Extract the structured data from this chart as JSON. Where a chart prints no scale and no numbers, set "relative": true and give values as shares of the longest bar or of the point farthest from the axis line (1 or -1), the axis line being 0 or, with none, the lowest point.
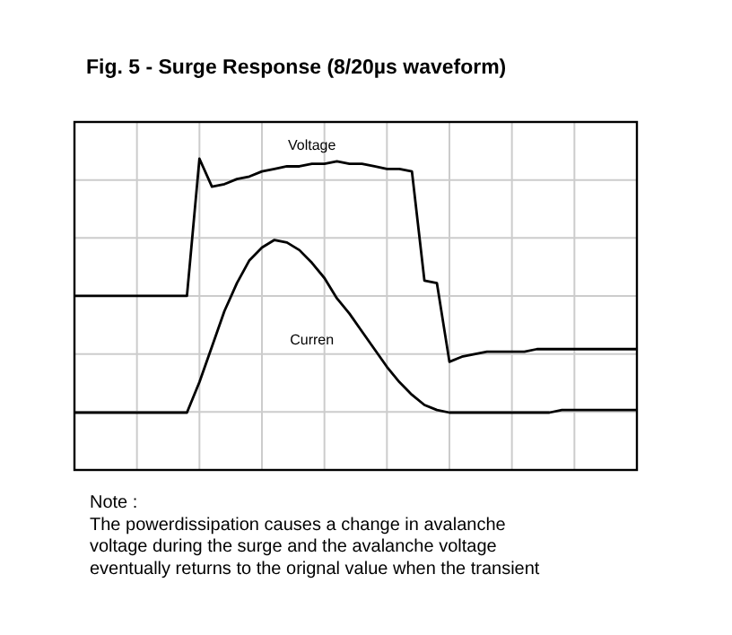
{
  "chart_data": {
    "type": "line",
    "title": "Fig. 5 - Surge Response (8/20µs waveform)",
    "relative": true,
    "grid": true,
    "marker": "none",
    "line_style": "solid",
    "categories": [
      null,
      null,
      null,
      null,
      null,
      null,
      null,
      null,
      null,
      null,
      null,
      null,
      null,
      null,
      null,
      null,
      null,
      null,
      null,
      null,
      null,
      null,
      null,
      null,
      null,
      null,
      null,
      null,
      null,
      null,
      null,
      null,
      null,
      null,
      null,
      null,
      null,
      null,
      null,
      null,
      null,
      null,
      null,
      null,
      null,
      null
    ],
    "series": [
      {
        "name": "Voltage",
        "color": "#000000",
        "values": [
          0.46,
          0.46,
          0.46,
          0.46,
          0.46,
          0.46,
          0.46,
          0.46,
          0.46,
          0.46,
          1.0,
          0.89,
          0.9,
          0.92,
          0.93,
          0.95,
          0.96,
          0.97,
          0.97,
          0.98,
          0.98,
          0.99,
          0.98,
          0.98,
          0.97,
          0.96,
          0.96,
          0.95,
          0.52,
          0.51,
          0.2,
          0.22,
          0.23,
          0.24,
          0.24,
          0.24,
          0.24,
          0.25,
          0.25,
          0.25,
          0.25,
          0.25,
          0.25,
          0.25,
          0.25,
          0.25
        ]
      },
      {
        "name": "Curren",
        "color": "#000000",
        "values": [
          0,
          0,
          0,
          0,
          0,
          0,
          0,
          0,
          0,
          0,
          0.12,
          0.26,
          0.4,
          0.51,
          0.6,
          0.65,
          0.68,
          0.67,
          0.64,
          0.59,
          0.53,
          0.45,
          0.39,
          0.32,
          0.25,
          0.18,
          0.12,
          0.07,
          0.03,
          0.01,
          0,
          0,
          0,
          0,
          0,
          0,
          0,
          0,
          0,
          0.01,
          0.01,
          0.01,
          0.01,
          0.01,
          0.01,
          0.01
        ]
      }
    ],
    "annotations": [
      "Note :",
      "The powerdissipation causes a change in avalanche",
      "voltage during the surge and the avalanche voltage",
      "eventually returns to the orignal value when the transient"
    ]
  }
}
